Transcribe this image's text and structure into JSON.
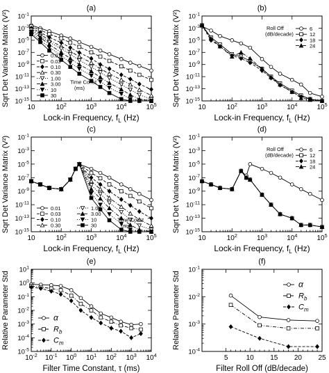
{
  "figure": {
    "shared_labels": {
      "ylabel_top": "Sqrt Det Variance Matrix (V²)",
      "xlabel_freq": "Lock-in Frequency, f",
      "xlabel_freq_sub": "L",
      "xlabel_freq_unit": " (Hz)",
      "ylabel_bottom": "Relative Parameter Std",
      "xlabel_tau": "Filter Time Constant, τ (ms)",
      "xlabel_rolloff": "Filter Roll Off (dB/decade)"
    }
  },
  "chart_data": [
    {
      "panel": "(a)",
      "type": "line",
      "xscale": "log",
      "yscale": "log",
      "xlim": [
        10,
        100000
      ],
      "ylim": [
        1e-15,
        0.1
      ],
      "xticks": [
        "10",
        "10²",
        "10³",
        "10⁴",
        "10⁵"
      ],
      "yticks": [
        "10⁻¹⁵",
        "10⁻¹³",
        "10⁻¹¹",
        "10⁻⁹",
        "10⁻⁷",
        "10⁻⁵",
        "10⁻³",
        "10⁻¹"
      ],
      "legend_title": "Time Const",
      "legend_unit": "(ms)",
      "legend_position": "bottom-left",
      "x": [
        10,
        20,
        40,
        100,
        200,
        400,
        1000,
        2000,
        4000,
        10000,
        20000,
        40000,
        100000
      ],
      "series": [
        {
          "name": "0.01",
          "marker": "o",
          "dash": "solid",
          "values": [
            0.003,
            0.001,
            0.0003,
            6e-05,
            2e-05,
            5e-06,
            8e-07,
            2e-07,
            5e-08,
            8e-09,
            2e-09,
            6e-10,
            1e-10
          ]
        },
        {
          "name": "0.03",
          "marker": "s",
          "dash": "dash",
          "values": [
            0.002,
            0.0005,
            0.0001,
            2e-05,
            4e-06,
            8e-07,
            1e-07,
            2e-08,
            4e-09,
            5e-10,
            1e-10,
            2e-11,
            3e-12
          ]
        },
        {
          "name": "0.10",
          "marker": "d",
          "dash": "dash",
          "values": [
            0.001,
            0.0002,
            3e-05,
            4e-06,
            6e-07,
            9e-08,
            1e-08,
            1e-09,
            2e-10,
            2e-11,
            4e-12,
            6e-13,
            8e-14
          ]
        },
        {
          "name": "0.30",
          "marker": "t",
          "dash": "dashdot",
          "values": [
            0.0007,
            0.0001,
            1e-05,
            1e-06,
            1.5e-07,
            2e-08,
            2e-09,
            2e-10,
            3e-11,
            3e-12,
            5e-13,
            7e-14,
            8e-15
          ]
        },
        {
          "name": "1.00",
          "marker": "v",
          "dash": "dot",
          "values": [
            0.0005,
            5e-05,
            5e-06,
            4e-07,
            5e-08,
            5e-09,
            4e-10,
            5e-11,
            6e-12,
            5e-13,
            7e-14,
            1e-14,
            2e-15
          ]
        },
        {
          "name": "3.00",
          "marker": "tf",
          "dash": "dashdot",
          "values": [
            0.0003,
            3e-05,
            2e-06,
            1e-07,
            1e-08,
            1e-09,
            8e-11,
            8e-12,
            9e-13,
            8e-14,
            1e-14,
            2e-15,
            1e-15
          ]
        },
        {
          "name": "10",
          "marker": "vf",
          "dash": "dot",
          "values": [
            0.0002,
            1e-05,
            7e-07,
            3e-08,
            2e-09,
            2e-10,
            1.5e-11,
            1.5e-12,
            1.5e-13,
            1.5e-14,
            2e-15,
            1e-15,
            1e-15
          ]
        },
        {
          "name": "30",
          "marker": "sf",
          "dash": "solid",
          "values": [
            0.0001,
            5e-06,
            2e-07,
            6e-09,
            4e-10,
            3e-11,
            2e-12,
            2e-13,
            2e-14,
            2e-15,
            1e-15,
            1e-15,
            1e-15
          ]
        }
      ]
    },
    {
      "panel": "(b)",
      "type": "line",
      "xscale": "log",
      "yscale": "log",
      "xlim": [
        10,
        100000
      ],
      "ylim": [
        1e-15,
        0.1
      ],
      "xticks": [
        "10",
        "10²",
        "10³",
        "10⁴",
        "10⁵"
      ],
      "yticks": [
        "10⁻¹⁵",
        "10⁻¹³",
        "10⁻¹¹",
        "10⁻⁹",
        "10⁻⁷",
        "10⁻⁵",
        "10⁻³",
        "10⁻¹"
      ],
      "legend_title": "Roll Off",
      "legend_unit": "(dB/decade)",
      "legend_position": "top-right",
      "x": [
        10,
        20,
        40,
        100,
        200,
        400,
        1000,
        2000,
        4000,
        10000,
        20000,
        40000,
        100000
      ],
      "series": [
        {
          "name": "6",
          "marker": "o",
          "dash": "solid",
          "values": [
            0.002,
            0.0004,
            5e-05,
            1e-05,
            3e-06,
            6e-07,
            8e-09,
            4e-10,
            3e-11,
            3e-12,
            5e-13,
            2e-14,
            5e-15
          ]
        },
        {
          "name": "12",
          "marker": "s",
          "dash": "solid",
          "values": [
            0.003,
            3e-05,
            2e-06,
            5e-08,
            2e-08,
            4e-09,
            2e-10,
            1e-11,
            8e-13,
            5e-14,
            8e-15,
            2e-15,
            1e-15
          ]
        },
        {
          "name": "18",
          "marker": "d",
          "dash": "dash",
          "values": [
            0.003,
            1e-05,
            1e-06,
            3e-08,
            1e-08,
            2e-09,
            1e-10,
            6e-12,
            4e-13,
            3e-14,
            5e-15,
            2e-15,
            1e-15
          ]
        },
        {
          "name": "24",
          "marker": "tf",
          "dash": "dashdot",
          "values": [
            0.003,
            2e-05,
            1e-06,
            2e-08,
            1e-07,
            1e-08,
            2e-10,
            8e-12,
            5e-13,
            3e-14,
            3e-15,
            1.5e-15,
            1e-15
          ]
        }
      ]
    },
    {
      "panel": "(c)",
      "type": "line",
      "xscale": "log",
      "yscale": "log",
      "xlim": [
        10,
        100000
      ],
      "ylim": [
        1e-15,
        0.1
      ],
      "xticks": [
        "10",
        "10²",
        "10³",
        "10⁴",
        "10⁵"
      ],
      "yticks": [
        "10⁻¹⁵",
        "10⁻¹³",
        "10⁻¹¹",
        "10⁻⁹",
        "10⁻⁷",
        "10⁻⁵",
        "10⁻³",
        "10⁻¹"
      ],
      "legend_title": "Time Const",
      "legend_unit": "(ms)",
      "legend_position": "bottom",
      "x": [
        10,
        20,
        40,
        100,
        200,
        300,
        400,
        1000,
        2000,
        4000,
        10000,
        20000,
        40000,
        100000
      ],
      "series": [
        {
          "name": "0.01",
          "marker": "o",
          "dash": "solid",
          "values": [
            3e-08,
            1e-08,
            3e-09,
            2e-09,
            5e-08,
            2e-06,
            1e-05,
            2e-06,
            5e-07,
            1e-07,
            1e-08,
            2e-09,
            4e-10,
            5e-11
          ]
        },
        {
          "name": "0.03",
          "marker": "s",
          "dash": "dash",
          "values": [
            3e-08,
            1e-08,
            3e-09,
            2e-09,
            5e-08,
            2e-06,
            1e-05,
            5e-07,
            8e-08,
            1e-08,
            1e-09,
            2e-10,
            3e-11,
            3e-12
          ]
        },
        {
          "name": "0.10",
          "marker": "d",
          "dash": "dash",
          "values": [
            3e-08,
            1e-08,
            3e-09,
            2e-09,
            5e-08,
            2e-06,
            1e-05,
            1e-07,
            1e-08,
            1e-09,
            6e-11,
            8e-12,
            1e-12,
            1e-13
          ]
        },
        {
          "name": "0.30",
          "marker": "t",
          "dash": "dashdot",
          "values": [
            3e-08,
            1e-08,
            3e-09,
            2e-09,
            5e-08,
            2e-06,
            1e-05,
            3e-08,
            2e-09,
            1e-10,
            5e-12,
            5e-13,
            6e-14,
            8e-15
          ]
        },
        {
          "name": "1.00",
          "marker": "v",
          "dash": "dot",
          "values": [
            3e-08,
            1e-08,
            3e-09,
            2e-09,
            5e-08,
            2e-06,
            1e-05,
            8e-09,
            4e-10,
            2e-11,
            8e-13,
            6e-14,
            8e-15,
            2e-15
          ]
        },
        {
          "name": "3.00",
          "marker": "tf",
          "dash": "dashdot",
          "values": [
            3e-08,
            1e-08,
            3e-09,
            2e-09,
            5e-08,
            2e-06,
            1e-05,
            2e-09,
            8e-11,
            3e-12,
            1e-13,
            1e-14,
            2e-15,
            1e-15
          ]
        },
        {
          "name": "10",
          "marker": "vf",
          "dash": "dot",
          "values": [
            3e-08,
            1e-08,
            3e-09,
            2e-09,
            5e-08,
            2e-06,
            1e-05,
            5e-10,
            1e-11,
            4e-13,
            1.5e-14,
            2e-15,
            1e-15,
            1e-15
          ]
        },
        {
          "name": "30",
          "marker": "sf",
          "dash": "solid",
          "values": [
            3e-08,
            1e-08,
            3e-09,
            2e-09,
            5e-08,
            2e-06,
            1e-05,
            1e-10,
            2e-12,
            5e-14,
            2e-15,
            1e-15,
            1e-15,
            1e-15
          ]
        }
      ]
    },
    {
      "panel": "(d)",
      "type": "line",
      "xscale": "log",
      "yscale": "log",
      "xlim": [
        10,
        100000
      ],
      "ylim": [
        1e-15,
        0.1
      ],
      "xticks": [
        "10",
        "10²",
        "10³",
        "10⁴",
        "10⁵"
      ],
      "yticks": [
        "10⁻¹⁵",
        "10⁻¹³",
        "10⁻¹¹",
        "10⁻⁹",
        "10⁻⁷",
        "10⁻⁵",
        "10⁻³",
        "10⁻¹"
      ],
      "legend_title": "Roll Off",
      "legend_unit": "(dB/decade)",
      "legend_position": "top-right",
      "x": [
        10,
        20,
        40,
        100,
        200,
        300,
        400,
        1000,
        2000,
        4000,
        10000,
        20000,
        40000,
        100000
      ],
      "series": [
        {
          "name": "6",
          "marker": "o",
          "dash": "solid",
          "values": [
            3e-08,
            1e-08,
            3e-09,
            2e-09,
            1e-06,
            2e-07,
            1e-05,
            2e-06,
            5e-07,
            1e-07,
            1e-08,
            2e-09,
            4e-10,
            5e-11
          ]
        },
        {
          "name": "12",
          "marker": "s",
          "dash": "solid",
          "values": [
            3e-08,
            1e-08,
            3e-09,
            2e-09,
            1e-06,
            1e-07,
            5e-08,
            3e-10,
            1e-11,
            4e-13,
            1e-13,
            1e-14,
            1e-14,
            5e-15
          ]
        },
        {
          "name": "18",
          "marker": "d",
          "dash": "dash",
          "values": [
            3e-08,
            1e-08,
            3e-09,
            2e-09,
            1e-06,
            1e-07,
            5e-08,
            3e-10,
            1e-11,
            4e-13,
            1e-13,
            1e-14,
            1e-14,
            5e-15
          ]
        },
        {
          "name": "24",
          "marker": "tf",
          "dash": "dashdot",
          "values": [
            3e-08,
            1e-08,
            3e-09,
            2e-09,
            1e-06,
            1e-07,
            5e-08,
            3e-10,
            1e-11,
            4e-13,
            1e-13,
            1e-14,
            1e-14,
            5e-15
          ]
        }
      ]
    },
    {
      "panel": "(e)",
      "type": "line",
      "xscale": "log",
      "yscale": "log",
      "xlim": [
        0.01,
        10000
      ],
      "ylim": [
        1e-05,
        10
      ],
      "xticks": [
        "10⁻²",
        "10⁻¹",
        "10⁰",
        "10¹",
        "10²",
        "10³",
        "10⁴"
      ],
      "yticks": [
        "10⁻⁵",
        "10⁻⁴",
        "10⁻³",
        "10⁻²",
        "10⁻¹",
        "10⁰",
        "10¹"
      ],
      "legend_position": "lower-left",
      "x": [
        0.01,
        0.03,
        0.1,
        0.3,
        1,
        3,
        10,
        30,
        100,
        300,
        1000,
        3000
      ],
      "series": [
        {
          "name": "α",
          "marker": "o",
          "dash": "solid",
          "values": [
            0.8,
            0.75,
            0.7,
            0.6,
            0.3,
            0.08,
            0.02,
            0.006,
            0.003,
            0.0015,
            0.0009,
            0.001
          ]
        },
        {
          "name": "R_b",
          "marker": "s",
          "dash": "dashdot",
          "values": [
            0.6,
            0.5,
            0.4,
            0.3,
            0.12,
            0.03,
            0.01,
            0.003,
            0.0015,
            0.0008,
            0.0005,
            0.0004
          ]
        },
        {
          "name": "C_m",
          "marker": "d",
          "dash": "dash",
          "values": [
            0.5,
            0.4,
            0.25,
            0.15,
            0.05,
            0.01,
            0.003,
            0.0012,
            0.0005,
            0.0003,
            0.0001,
            0.0002
          ]
        }
      ]
    },
    {
      "panel": "(f)",
      "type": "line",
      "xscale": "linear",
      "yscale": "log",
      "xlim": [
        0,
        25
      ],
      "ylim": [
        0.0001,
        0.1
      ],
      "xticks": [
        "5",
        "10",
        "15",
        "20",
        "25"
      ],
      "yticks": [
        "10⁻⁴",
        "10⁻³",
        "10⁻²",
        "10⁻¹"
      ],
      "legend_position": "top-right",
      "x": [
        6,
        12,
        18,
        24
      ],
      "series": [
        {
          "name": "α",
          "marker": "o",
          "dash": "solid",
          "values": [
            0.011,
            0.0018,
            0.0014,
            0.0013
          ]
        },
        {
          "name": "R_b",
          "marker": "s",
          "dash": "dashdot",
          "values": [
            0.005,
            0.0009,
            0.0007,
            0.0007
          ]
        },
        {
          "name": "C_m",
          "marker": "d",
          "dash": "dash",
          "values": [
            0.0008,
            0.0003,
            0.00015,
            0.00015
          ]
        }
      ]
    }
  ]
}
